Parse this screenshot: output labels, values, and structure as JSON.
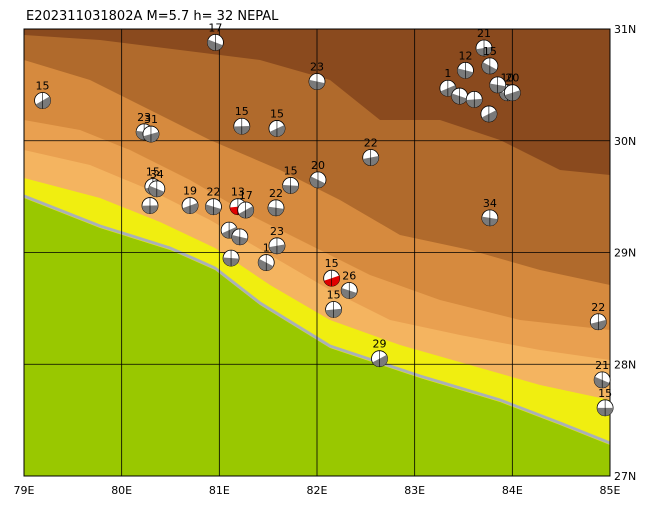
{
  "title": "E202311031802A  M=5.7  h= 32  NEPAL",
  "map": {
    "lon_range": [
      79,
      85
    ],
    "lat_range": [
      27,
      31
    ],
    "lon_ticks": [
      {
        "value": 79,
        "label": "79E"
      },
      {
        "value": 80,
        "label": "80E"
      },
      {
        "value": 81,
        "label": "81E"
      },
      {
        "value": 82,
        "label": "82E"
      },
      {
        "value": 83,
        "label": "83E"
      },
      {
        "value": 84,
        "label": "84E"
      },
      {
        "value": 85,
        "label": "85E"
      }
    ],
    "lat_ticks": [
      {
        "value": 27,
        "label": "27N"
      },
      {
        "value": 28,
        "label": "28N"
      },
      {
        "value": 29,
        "label": "29N"
      },
      {
        "value": 30,
        "label": "30N"
      },
      {
        "value": 31,
        "label": "31N"
      }
    ],
    "mechanism_color": "#7a7a7a",
    "events": [
      {
        "lon": 79.19,
        "lat": 30.36,
        "depth": 15
      },
      {
        "lon": 80.23,
        "lat": 30.08,
        "depth": 23
      },
      {
        "lon": 80.3,
        "lat": 30.06,
        "depth": 31
      },
      {
        "lon": 80.96,
        "lat": 30.88,
        "depth": 17
      },
      {
        "lon": 81.23,
        "lat": 30.13,
        "depth": 15
      },
      {
        "lon": 81.59,
        "lat": 30.11,
        "depth": 15
      },
      {
        "lon": 82.0,
        "lat": 30.53,
        "depth": 23
      },
      {
        "lon": 82.55,
        "lat": 29.85,
        "depth": 22
      },
      {
        "lon": 82.01,
        "lat": 29.65,
        "depth": 20
      },
      {
        "lon": 81.73,
        "lat": 29.6,
        "depth": 15
      },
      {
        "lon": 80.7,
        "lat": 29.42,
        "depth": 19
      },
      {
        "lon": 80.94,
        "lat": 29.41,
        "depth": 22
      },
      {
        "lon": 81.19,
        "lat": 29.41,
        "depth": 13,
        "color": "#e00000"
      },
      {
        "lon": 81.27,
        "lat": 29.38,
        "depth": 17
      },
      {
        "lon": 81.58,
        "lat": 29.4,
        "depth": 22
      },
      {
        "lon": 80.32,
        "lat": 29.59,
        "depth": 15
      },
      {
        "lon": 80.36,
        "lat": 29.57,
        "depth": 34
      },
      {
        "lon": 80.29,
        "lat": 29.42,
        "depth": null
      },
      {
        "lon": 81.1,
        "lat": 29.2,
        "depth": null
      },
      {
        "lon": 81.21,
        "lat": 29.14,
        "depth": null
      },
      {
        "lon": 81.59,
        "lat": 29.06,
        "depth": 23
      },
      {
        "lon": 81.48,
        "lat": 28.91,
        "depth": 1
      },
      {
        "lon": 81.12,
        "lat": 28.95,
        "depth": null
      },
      {
        "lon": 82.15,
        "lat": 28.77,
        "depth": 15,
        "color": "#e00000"
      },
      {
        "lon": 82.33,
        "lat": 28.66,
        "depth": 26
      },
      {
        "lon": 82.17,
        "lat": 28.49,
        "depth": 15
      },
      {
        "lon": 82.64,
        "lat": 28.05,
        "depth": 29
      },
      {
        "lon": 83.77,
        "lat": 29.31,
        "depth": 34
      },
      {
        "lon": 84.88,
        "lat": 28.38,
        "depth": 22
      },
      {
        "lon": 84.92,
        "lat": 27.86,
        "depth": 21
      },
      {
        "lon": 84.95,
        "lat": 27.61,
        "depth": 15
      },
      {
        "lon": 83.34,
        "lat": 30.47,
        "depth": 1
      },
      {
        "lon": 83.52,
        "lat": 30.63,
        "depth": 12
      },
      {
        "lon": 83.71,
        "lat": 30.83,
        "depth": 21
      },
      {
        "lon": 83.77,
        "lat": 30.67,
        "depth": 15
      },
      {
        "lon": 83.95,
        "lat": 30.43,
        "depth": 10
      },
      {
        "lon": 84.0,
        "lat": 30.43,
        "depth": 20
      },
      {
        "lon": 83.46,
        "lat": 30.4,
        "depth": null
      },
      {
        "lon": 83.61,
        "lat": 30.37,
        "depth": null
      },
      {
        "lon": 83.76,
        "lat": 30.24,
        "depth": null
      },
      {
        "lon": 83.85,
        "lat": 30.5,
        "depth": null
      }
    ]
  }
}
